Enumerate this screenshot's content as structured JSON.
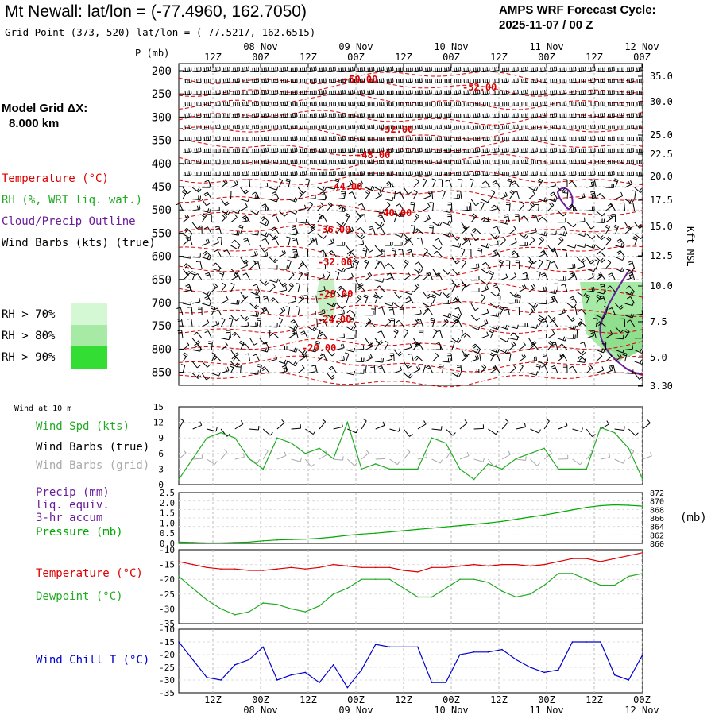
{
  "header": {
    "title": "Mt Newall:  lat/lon = (-77.4960, 162.7050)",
    "grid_point": "Grid Point (373, 520) lat/lon = (-77.5217, 162.6515)",
    "cycle_line1": "AMPS WRF Forecast Cycle:",
    "cycle_line2": "2025-11-07 / 00  Z"
  },
  "left_legend": {
    "grid_label_line1": "Model Grid ΔX:",
    "grid_label_line2": "8.000 km",
    "temperature": "Temperature (°C)",
    "rh": "RH (%, WRT liq. wat.)",
    "cloud": "Cloud/Precip Outline",
    "wind_barbs": "Wind Barbs (kts) (true)",
    "rh70": "RH > 70%",
    "rh80": "RH > 80%",
    "rh90": "RH > 90%"
  },
  "colors": {
    "temperature": "#dd0000",
    "rh": "#22aa22",
    "cloud": "#6a1b9a",
    "wind_barb_grid": "#aaaaaa",
    "rh70": "#d4f8d4",
    "rh80": "#a6eaa6",
    "rh90": "#33dd33",
    "pressure": "#00aa00",
    "wind_chill": "#0000cc"
  },
  "time_axis": {
    "top_hours": [
      "12Z",
      "00Z",
      "12Z",
      "00Z",
      "12Z",
      "00Z",
      "12Z",
      "00Z",
      "12Z",
      "00Z"
    ],
    "top_dates": [
      "08 Nov",
      "09 Nov",
      "10 Nov",
      "11 Nov",
      "12 Nov"
    ],
    "bottom_hours": [
      "12Z",
      "00Z",
      "12Z",
      "00Z",
      "12Z",
      "00Z",
      "12Z",
      "00Z",
      "12Z",
      "00Z"
    ],
    "bottom_dates": [
      "08 Nov",
      "09 Nov",
      "10 Nov",
      "11 Nov",
      "12 Nov"
    ]
  },
  "upper_panel": {
    "p_label": "P (mb)",
    "pressure_levels": [
      "200",
      "250",
      "300",
      "350",
      "400",
      "450",
      "500",
      "550",
      "600",
      "650",
      "700",
      "750",
      "800",
      "850"
    ],
    "kft_label": "Kft MSL",
    "kft_ticks": [
      "35.0",
      "30.0",
      "25.0",
      "22.5",
      "20.0",
      "17.5",
      "15.0",
      "12.5",
      "10.0",
      "7.5",
      "5.0",
      "3.30"
    ],
    "temp_labels": [
      "-50.00",
      "-52.00",
      "-52.00",
      "-48.00",
      "-44.00",
      "-40.00",
      "-36.00",
      "-32.00",
      "-28.00",
      "-24.00",
      "-20.00"
    ]
  },
  "wind_panel": {
    "wind_at_10m": "Wind at 10 m",
    "label_speed": "Wind Spd (kts)",
    "label_barbs_true": "Wind Barbs (true)",
    "label_barbs_grid": "Wind Barbs (grid)",
    "y_ticks": [
      "15",
      "12",
      "9",
      "6",
      "3",
      "0"
    ]
  },
  "precip_panel": {
    "label_precip": "Precip (mm)",
    "label_liq": "liq. equiv.",
    "label_accum": "3-hr accum",
    "label_pressure": "Pressure (mb)",
    "y_ticks_left": [
      "2.5",
      "2.0",
      "1.5",
      "1.0",
      "0.5",
      "0.0"
    ],
    "y_ticks_right": [
      "872",
      "870",
      "868",
      "866",
      "864",
      "862",
      "860"
    ],
    "unit_right": "(mb)"
  },
  "temp_panel": {
    "label_temp": "Temperature (°C)",
    "label_dew": "Dewpoint (°C)",
    "y_ticks": [
      "-10",
      "-15",
      "-20",
      "-25",
      "-30",
      "-35"
    ]
  },
  "chill_panel": {
    "label": "Wind Chill T (°C)",
    "y_ticks": [
      "-10",
      "-15",
      "-20",
      "-25",
      "-30",
      "-35"
    ]
  },
  "chart_data": [
    {
      "type": "line",
      "title": "Wind Spd (kts)",
      "x_hours": [
        0,
        3,
        6,
        9,
        12,
        15,
        18,
        21,
        24,
        27,
        30,
        33,
        36,
        39,
        42,
        45,
        48,
        51,
        54,
        57,
        60,
        63,
        66,
        69,
        72,
        75,
        78,
        81,
        84,
        87,
        90,
        93,
        96,
        99
      ],
      "series": [
        {
          "name": "Wind Spd (kts)",
          "values": [
            1,
            5,
            9,
            10,
            9,
            5,
            3,
            9,
            8,
            6,
            7,
            5,
            12,
            3,
            4,
            3,
            3,
            3,
            9,
            8,
            3,
            1,
            4,
            3,
            5,
            6,
            7,
            3,
            3,
            3,
            11,
            10,
            7,
            1
          ]
        }
      ],
      "ylim": [
        0,
        15
      ]
    },
    {
      "type": "line",
      "title": "Pressure (mb)",
      "x_hours": [
        0,
        3,
        6,
        9,
        12,
        15,
        18,
        21,
        24,
        27,
        30,
        33,
        36,
        39,
        42,
        45,
        48,
        51,
        54,
        57,
        60,
        63,
        66,
        69,
        72,
        75,
        78,
        81,
        84,
        87,
        90,
        93,
        96,
        99
      ],
      "series": [
        {
          "name": "Pressure (mb)",
          "values": [
            860.3,
            860.2,
            860.1,
            860.1,
            860.2,
            860.3,
            860.6,
            860.8,
            860.9,
            861.0,
            861.2,
            861.5,
            861.9,
            862.2,
            862.4,
            862.7,
            863.0,
            863.3,
            863.6,
            863.9,
            864.2,
            864.5,
            864.8,
            865.2,
            865.7,
            866.2,
            866.7,
            867.3,
            867.9,
            868.5,
            868.9,
            869.1,
            869.0,
            868.8
          ]
        }
      ],
      "ylim": [
        860,
        872
      ]
    },
    {
      "type": "line",
      "title": "Temperature (°C)",
      "x_hours": [
        0,
        3,
        6,
        9,
        12,
        15,
        18,
        21,
        24,
        27,
        30,
        33,
        36,
        39,
        42,
        45,
        48,
        51,
        54,
        57,
        60,
        63,
        66,
        69,
        72,
        75,
        78,
        81,
        84,
        87,
        90,
        93,
        96,
        99
      ],
      "series": [
        {
          "name": "Temperature (°C)",
          "values": [
            -14,
            -15,
            -16,
            -16.5,
            -16.5,
            -17,
            -17,
            -16.5,
            -16,
            -16.5,
            -16,
            -15,
            -15.5,
            -16,
            -16,
            -16,
            -17,
            -17.5,
            -16,
            -16,
            -15.5,
            -15,
            -15.5,
            -15,
            -15,
            -15.5,
            -15,
            -14,
            -13,
            -13,
            -14,
            -13,
            -12,
            -11
          ]
        },
        {
          "name": "Dewpoint (°C)",
          "values": [
            -19,
            -23,
            -27,
            -30,
            -32,
            -31,
            -28,
            -28.5,
            -30,
            -31,
            -29,
            -25,
            -23,
            -20,
            -20,
            -20,
            -23,
            -26,
            -26,
            -23,
            -20,
            -20,
            -21,
            -24,
            -26,
            -25,
            -22,
            -18,
            -18,
            -20,
            -22,
            -22,
            -19,
            -18
          ]
        }
      ],
      "ylim": [
        -35,
        -10
      ]
    },
    {
      "type": "line",
      "title": "Wind Chill T (°C)",
      "x_hours": [
        0,
        3,
        6,
        9,
        12,
        15,
        18,
        21,
        24,
        27,
        30,
        33,
        36,
        39,
        42,
        45,
        48,
        51,
        54,
        57,
        60,
        63,
        66,
        69,
        72,
        75,
        78,
        81,
        84,
        87,
        90,
        93,
        96,
        99
      ],
      "series": [
        {
          "name": "Wind Chill T (°C)",
          "values": [
            -15,
            -22,
            -29,
            -30,
            -24,
            -22,
            -17,
            -30,
            -28,
            -27,
            -31,
            -24,
            -33,
            -26,
            -16,
            -17,
            -17,
            -17,
            -31,
            -31,
            -20,
            -19,
            -19,
            -18,
            -22,
            -25,
            -27,
            -26,
            -15,
            -15,
            -15,
            -28,
            -30,
            -20
          ]
        }
      ],
      "ylim": [
        -35,
        -10
      ]
    }
  ]
}
